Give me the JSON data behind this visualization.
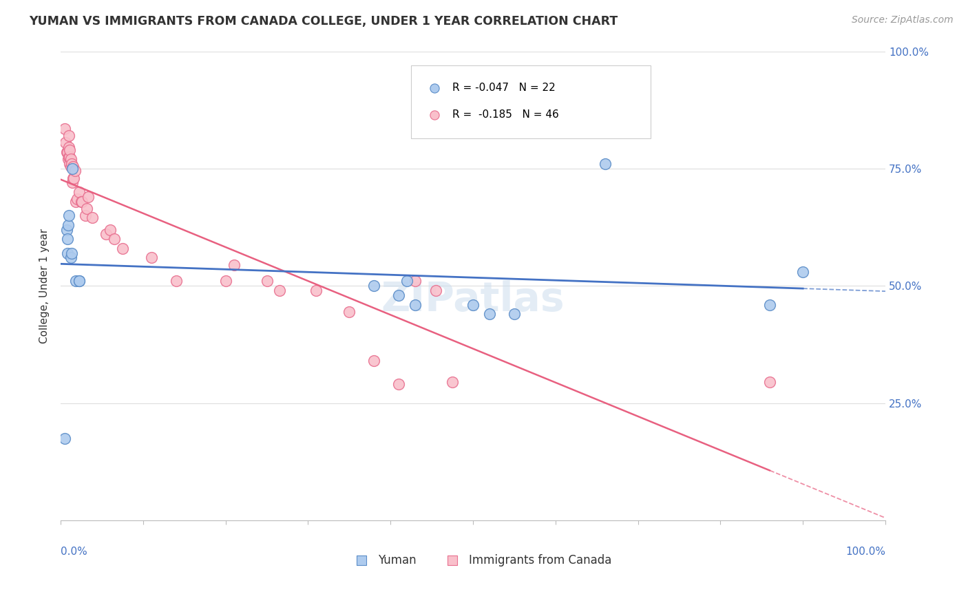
{
  "title": "YUMAN VS IMMIGRANTS FROM CANADA COLLEGE, UNDER 1 YEAR CORRELATION CHART",
  "source": "Source: ZipAtlas.com",
  "ylabel": "College, Under 1 year",
  "series1_label": "Yuman",
  "series2_label": "Immigrants from Canada",
  "watermark": "ZIPatlas",
  "blue_fill": "#AECBEE",
  "blue_edge": "#5B8DC8",
  "pink_fill": "#F9C0CB",
  "pink_edge": "#E87090",
  "blue_line": "#4472C4",
  "pink_line": "#E86080",
  "legend_r1": "-0.047",
  "legend_n1": "22",
  "legend_r2": "-0.185",
  "legend_n2": "46",
  "blue_points_x": [
    0.005,
    0.007,
    0.008,
    0.008,
    0.009,
    0.01,
    0.012,
    0.013,
    0.014,
    0.018,
    0.022,
    0.022,
    0.38,
    0.41,
    0.42,
    0.43,
    0.5,
    0.52,
    0.55,
    0.66,
    0.86,
    0.9
  ],
  "blue_points_y": [
    0.175,
    0.62,
    0.57,
    0.6,
    0.63,
    0.65,
    0.56,
    0.57,
    0.75,
    0.51,
    0.51,
    0.51,
    0.5,
    0.48,
    0.51,
    0.46,
    0.46,
    0.44,
    0.44,
    0.76,
    0.46,
    0.53
  ],
  "pink_points_x": [
    0.005,
    0.006,
    0.007,
    0.008,
    0.009,
    0.01,
    0.01,
    0.01,
    0.011,
    0.011,
    0.011,
    0.012,
    0.012,
    0.013,
    0.014,
    0.015,
    0.015,
    0.016,
    0.017,
    0.018,
    0.02,
    0.022,
    0.025,
    0.026,
    0.03,
    0.032,
    0.033,
    0.038,
    0.055,
    0.06,
    0.065,
    0.075,
    0.11,
    0.14,
    0.2,
    0.21,
    0.25,
    0.265,
    0.31,
    0.35,
    0.38,
    0.41,
    0.43,
    0.455,
    0.475,
    0.86
  ],
  "pink_points_y": [
    0.835,
    0.805,
    0.785,
    0.785,
    0.77,
    0.775,
    0.795,
    0.82,
    0.76,
    0.775,
    0.79,
    0.755,
    0.77,
    0.76,
    0.72,
    0.73,
    0.755,
    0.73,
    0.745,
    0.68,
    0.685,
    0.7,
    0.68,
    0.68,
    0.65,
    0.665,
    0.69,
    0.645,
    0.61,
    0.62,
    0.6,
    0.58,
    0.56,
    0.51,
    0.51,
    0.545,
    0.51,
    0.49,
    0.49,
    0.445,
    0.34,
    0.29,
    0.51,
    0.49,
    0.295,
    0.295
  ],
  "figsize": [
    14.06,
    8.92
  ],
  "dpi": 100
}
